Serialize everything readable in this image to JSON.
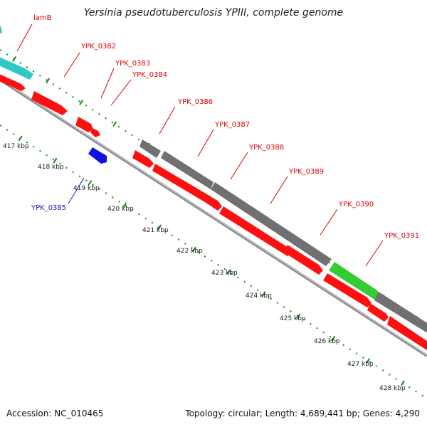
{
  "header": {
    "title": "Yersinia pseudotuberculosis YPIII, complete genome"
  },
  "footer": {
    "accession": "Accession: NC_010465",
    "topology": "Topology: circular; Length: 4,689,441 bp; Genes: 4,290"
  },
  "colors": {
    "gene_forward": "#ff0000",
    "gene_reverse": "#1010e0",
    "gene_other": "#707070",
    "gene_cyan": "#2ec8c8",
    "gene_green": "#33cc33",
    "backbone": "#9a9a9a",
    "tick": "#1a8a1a",
    "label_forward": "#dd0000",
    "label_reverse": "#1a1ab0",
    "scale_label": "#222222"
  },
  "scale_labels": [
    "417 kbp",
    "418 kbp",
    "419 kbp",
    "420 kbp",
    "421 kbp",
    "422 kbp",
    "423 kbp",
    "424 kbp",
    "425 kbp",
    "426 kbp",
    "427 kbp",
    "428 kbp"
  ],
  "gene_labels": [
    {
      "text": "lamB",
      "strand": "forward"
    },
    {
      "text": "YPK_0382",
      "strand": "forward"
    },
    {
      "text": "YPK_0383",
      "strand": "forward"
    },
    {
      "text": "YPK_0384",
      "strand": "forward"
    },
    {
      "text": "YPK_0386",
      "strand": "forward"
    },
    {
      "text": "YPK_0387",
      "strand": "forward"
    },
    {
      "text": "YPK_0388",
      "strand": "forward"
    },
    {
      "text": "YPK_0389",
      "strand": "forward"
    },
    {
      "text": "YPK_0390",
      "strand": "forward"
    },
    {
      "text": "YPK_0391",
      "strand": "forward"
    },
    {
      "text": "YPK_0385",
      "strand": "reverse"
    }
  ]
}
